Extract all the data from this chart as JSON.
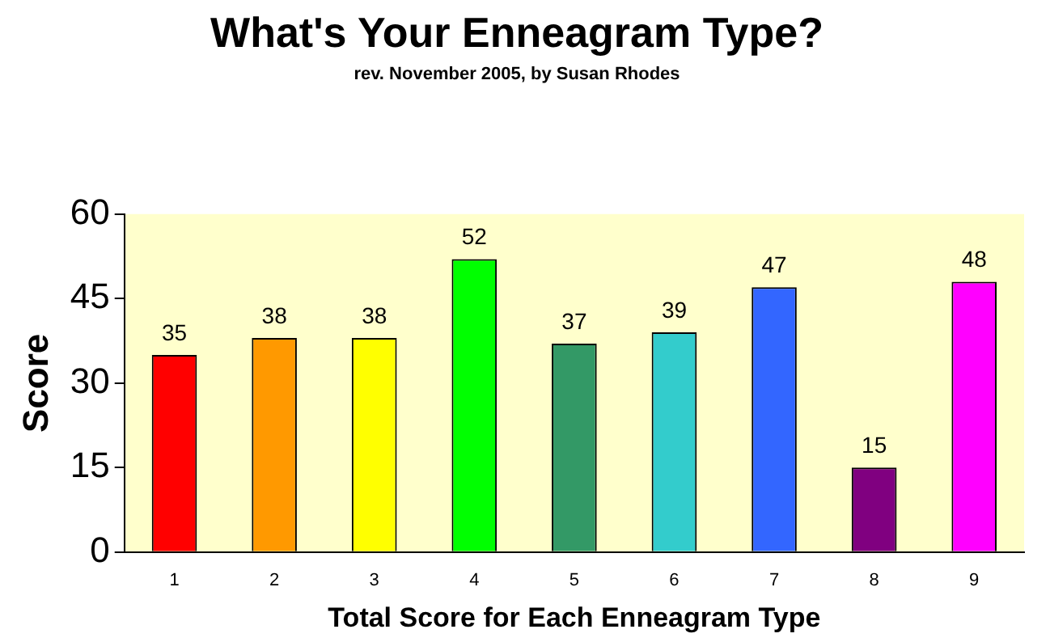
{
  "chart_data": {
    "type": "bar",
    "title": "What's Your Enneagram Type?",
    "subtitle": "rev. November 2005, by Susan Rhodes",
    "xlabel": "Total Score for Each Enneagram Type",
    "ylabel": "Score",
    "categories": [
      "1",
      "2",
      "3",
      "4",
      "5",
      "6",
      "7",
      "8",
      "9"
    ],
    "values": [
      35,
      38,
      38,
      52,
      37,
      39,
      47,
      15,
      48
    ],
    "colors": [
      "#ff0000",
      "#ff9900",
      "#ffff00",
      "#00ff00",
      "#339966",
      "#33cccc",
      "#3366ff",
      "#800080",
      "#ff00ff"
    ],
    "ylim": [
      0,
      60
    ],
    "yticks": [
      0,
      15,
      30,
      45,
      60
    ],
    "grid": false,
    "legend": false,
    "data_labels": true
  }
}
